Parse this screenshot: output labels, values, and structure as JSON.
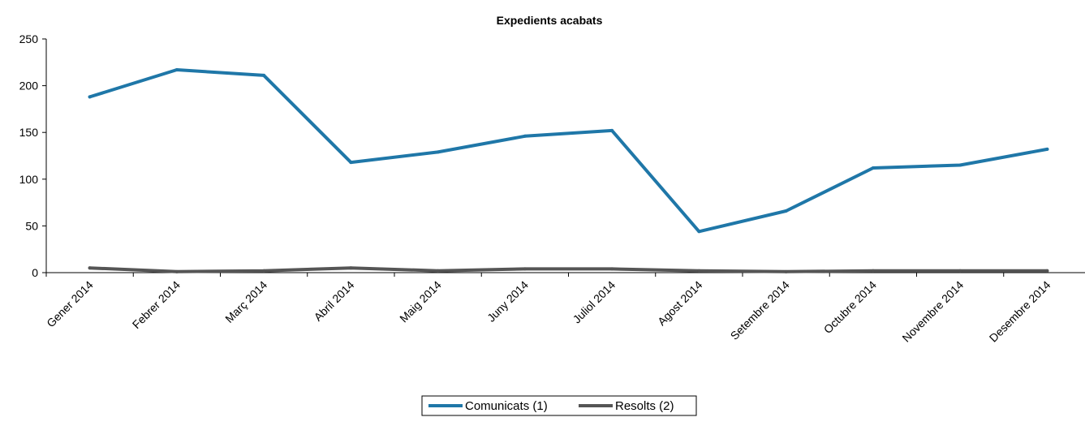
{
  "chart_data": {
    "type": "line",
    "title": "Expedients acabats",
    "xlabel": "",
    "ylabel": "",
    "categories": [
      "Gener 2014",
      "Febrer 2014",
      "Març 2014",
      "Abril 2014",
      "Maig 2014",
      "Juny 2014",
      "Juliol 2014",
      "Agost 2014",
      "Setembre 2014",
      "Octubre 2014",
      "Novembre 2014",
      "Desembre 2014"
    ],
    "ylim": [
      0,
      250
    ],
    "yticks": [
      0,
      50,
      100,
      150,
      200,
      250
    ],
    "grid": false,
    "legend_position": "bottom",
    "series": [
      {
        "name": "Comunicats (1)",
        "color": "#1f77a8",
        "values": [
          188,
          217,
          211,
          118,
          129,
          146,
          152,
          44,
          66,
          112,
          115,
          132
        ]
      },
      {
        "name": "Resolts (2)",
        "color": "#555555",
        "values": [
          5,
          1,
          2,
          5,
          2,
          4,
          4,
          2,
          1,
          2,
          2,
          2
        ]
      }
    ]
  }
}
